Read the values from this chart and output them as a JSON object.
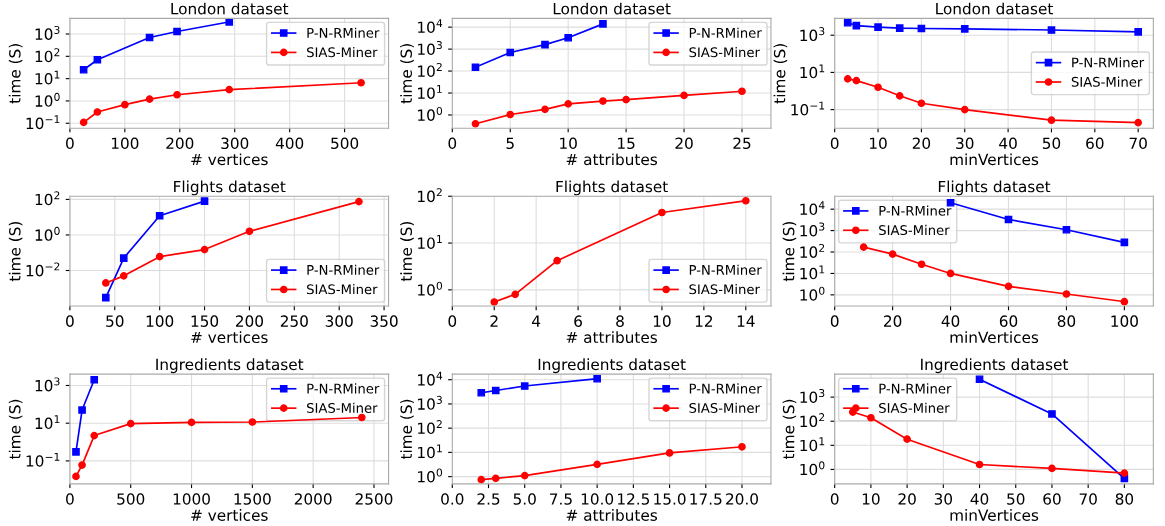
{
  "chart_data": [
    {
      "type": "line",
      "title": "London dataset",
      "xlabel": "# vertices",
      "ylabel": "time (S)",
      "log": true,
      "grid": true,
      "legend": "top right",
      "xlim": [
        0,
        580
      ],
      "xticks": [
        0,
        100,
        200,
        300,
        400,
        500
      ],
      "ylim": [
        0.06,
        5000
      ],
      "yticks": [
        {
          "value": 0.1,
          "label": "10$^{−1}$"
        },
        {
          "value": 1,
          "label": "10$^{0}$"
        },
        {
          "value": 10,
          "label": "10$^{1}$"
        },
        {
          "value": 100,
          "label": "10$^{2}$"
        },
        {
          "value": 1000,
          "label": "10$^{3}$"
        }
      ],
      "series": [
        {
          "name": "P-N-RMiner",
          "color": "#0000ff",
          "marker": "square",
          "x": [
            25,
            50,
            145,
            195,
            290
          ],
          "values": [
            25,
            70,
            700,
            1300,
            3500
          ]
        },
        {
          "name": "SIAS-Miner",
          "color": "#ff0000",
          "marker": "circle",
          "x": [
            25,
            50,
            100,
            145,
            195,
            290,
            530
          ],
          "values": [
            0.11,
            0.32,
            0.68,
            1.2,
            1.9,
            3.2,
            6.5
          ]
        }
      ]
    },
    {
      "type": "line",
      "title": "London dataset",
      "xlabel": "# attributes",
      "ylabel": "time (S)",
      "log": true,
      "grid": true,
      "legend": "top right",
      "xlim": [
        0,
        27.5
      ],
      "xticks": [
        0,
        5,
        10,
        15,
        20,
        25
      ],
      "ylim": [
        0.25,
        25000
      ],
      "yticks": [
        {
          "value": 1,
          "label": "10$^{0}$"
        },
        {
          "value": 10,
          "label": "10$^{1}$"
        },
        {
          "value": 100,
          "label": "10$^{2}$"
        },
        {
          "value": 1000,
          "label": "10$^{3}$"
        },
        {
          "value": 10000,
          "label": "10$^{4}$"
        }
      ],
      "series": [
        {
          "name": "P-N-RMiner",
          "color": "#0000ff",
          "marker": "square",
          "x": [
            2,
            5,
            8,
            10,
            13
          ],
          "values": [
            150,
            700,
            1600,
            3300,
            14000
          ]
        },
        {
          "name": "SIAS-Miner",
          "color": "#ff0000",
          "marker": "circle",
          "x": [
            2,
            5,
            8,
            10,
            13,
            15,
            20,
            25
          ],
          "values": [
            0.4,
            1.05,
            1.8,
            3.2,
            4.3,
            5,
            7.8,
            12
          ]
        }
      ]
    },
    {
      "type": "line",
      "title": "London dataset",
      "xlabel": "minVertices",
      "ylabel": "time (S)",
      "log": true,
      "grid": true,
      "legend": "right",
      "xlim": [
        0,
        73.5
      ],
      "xticks": [
        0,
        10,
        20,
        30,
        40,
        50,
        60,
        70
      ],
      "ylim": [
        0.01,
        8000
      ],
      "yticks": [
        {
          "value": 0.1,
          "label": "10$^{−1}$"
        },
        {
          "value": 10,
          "label": "10$^{1}$"
        },
        {
          "value": 1000,
          "label": "10$^{3}$"
        }
      ],
      "series": [
        {
          "name": "P-N-RMiner",
          "color": "#0000ff",
          "marker": "square",
          "x": [
            3,
            5,
            10,
            15,
            20,
            30,
            50,
            70
          ],
          "values": [
            4700,
            3300,
            2700,
            2400,
            2300,
            2200,
            1900,
            1500
          ]
        },
        {
          "name": "SIAS-Miner",
          "color": "#ff0000",
          "marker": "circle",
          "x": [
            3,
            5,
            10,
            15,
            20,
            30,
            50,
            70
          ],
          "values": [
            4.5,
            3.6,
            1.6,
            0.55,
            0.22,
            0.1,
            0.027,
            0.02
          ]
        }
      ]
    },
    {
      "type": "line",
      "title": "Flights dataset",
      "xlabel": "# vertices",
      "ylabel": "time (S)",
      "log": true,
      "grid": true,
      "legend": "bottom right",
      "xlim": [
        0,
        355
      ],
      "xticks": [
        0,
        50,
        100,
        150,
        200,
        250,
        300,
        350
      ],
      "ylim": [
        0.0001,
        150
      ],
      "yticks": [
        {
          "value": 0.01,
          "label": "10$^{−2}$"
        },
        {
          "value": 1,
          "label": "10$^{0}$"
        },
        {
          "value": 100,
          "label": "10$^{2}$"
        }
      ],
      "series": [
        {
          "name": "P-N-RMiner",
          "color": "#0000ff",
          "marker": "square",
          "x": [
            40,
            60,
            100,
            150
          ],
          "values": [
            0.0003,
            0.05,
            12,
            80
          ]
        },
        {
          "name": "SIAS-Miner",
          "color": "#ff0000",
          "marker": "circle",
          "x": [
            40,
            60,
            100,
            150,
            200,
            322
          ],
          "values": [
            0.002,
            0.005,
            0.06,
            0.15,
            1.6,
            75
          ]
        }
      ]
    },
    {
      "type": "line",
      "title": "Flights dataset",
      "xlabel": "# attributes",
      "ylabel": "time (S)",
      "log": true,
      "grid": true,
      "legend": "bottom right",
      "xlim": [
        0,
        15.2
      ],
      "xticks": [
        0,
        2,
        4,
        6,
        8,
        10,
        12,
        14
      ],
      "ylim": [
        0.45,
        100
      ],
      "yticks": [
        {
          "value": 1,
          "label": "10$^{0}$"
        },
        {
          "value": 10,
          "label": "10$^{1}$"
        },
        {
          "value": 100,
          "label": "10$^{2}$"
        }
      ],
      "series": [
        {
          "name": "P-N-RMiner",
          "color": "#0000ff",
          "marker": "square"
        },
        {
          "name": "SIAS-Miner",
          "color": "#ff0000",
          "marker": "circle",
          "x": [
            2,
            3,
            5,
            10,
            14
          ],
          "values": [
            0.55,
            0.8,
            4.2,
            45,
            80
          ]
        }
      ]
    },
    {
      "type": "line",
      "title": "Flights dataset",
      "xlabel": "minVertices",
      "ylabel": "time (S)",
      "log": true,
      "grid": true,
      "legend": "top left",
      "xlim": [
        0,
        110
      ],
      "xticks": [
        0,
        20,
        40,
        60,
        80,
        100
      ],
      "ylim": [
        0.3,
        40000
      ],
      "yticks": [
        {
          "value": 1,
          "label": "10$^{0}$"
        },
        {
          "value": 10,
          "label": "10$^{1}$"
        },
        {
          "value": 100,
          "label": "10$^{2}$"
        },
        {
          "value": 1000,
          "label": "10$^{3}$"
        },
        {
          "value": 10000,
          "label": "10$^{4}$"
        }
      ],
      "series": [
        {
          "name": "P-N-RMiner",
          "color": "#0000ff",
          "marker": "square",
          "x": [
            40,
            60,
            80,
            100
          ],
          "values": [
            20000,
            3300,
            1100,
            280
          ]
        },
        {
          "name": "SIAS-Miner",
          "color": "#ff0000",
          "marker": "circle",
          "x": [
            10,
            20,
            30,
            40,
            60,
            80,
            100
          ],
          "values": [
            170,
            80,
            27,
            10,
            2.5,
            1.1,
            0.48
          ]
        }
      ]
    },
    {
      "type": "line",
      "title": "Ingredients dataset",
      "xlabel": "# vertices",
      "ylabel": "time (S)",
      "log": true,
      "grid": true,
      "legend": "top right",
      "xlim": [
        0,
        2620
      ],
      "xticks": [
        0,
        500,
        1000,
        1500,
        2000,
        2500
      ],
      "ylim": [
        0.006,
        4000
      ],
      "yticks": [
        {
          "value": 0.1,
          "label": "10$^{−1}$"
        },
        {
          "value": 10,
          "label": "10$^{1}$"
        },
        {
          "value": 1000,
          "label": "10$^{3}$"
        }
      ],
      "series": [
        {
          "name": "P-N-RMiner",
          "color": "#0000ff",
          "marker": "square",
          "x": [
            50,
            100,
            200
          ],
          "values": [
            0.3,
            50,
            2000
          ]
        },
        {
          "name": "SIAS-Miner",
          "color": "#ff0000",
          "marker": "circle",
          "x": [
            50,
            100,
            200,
            500,
            1000,
            1500,
            2400
          ],
          "values": [
            0.015,
            0.06,
            2.2,
            9.5,
            11,
            11.5,
            20
          ]
        }
      ]
    },
    {
      "type": "line",
      "title": "Ingredients dataset",
      "xlabel": "# attributes",
      "ylabel": "time (S)",
      "log": true,
      "grid": true,
      "legend": "top right",
      "xlim": [
        0,
        22
      ],
      "xticks": [
        {
          "value": 0,
          "label": "0.0"
        },
        {
          "value": 2.5,
          "label": "2.5"
        },
        {
          "value": 5,
          "label": "5.0"
        },
        {
          "value": 7.5,
          "label": "7.5"
        },
        {
          "value": 10,
          "label": "10.0"
        },
        {
          "value": 12.5,
          "label": "12.5"
        },
        {
          "value": 15,
          "label": "15.0"
        },
        {
          "value": 17.5,
          "label": "17.5"
        },
        {
          "value": 20,
          "label": "20.0"
        }
      ],
      "ylim": [
        0.5,
        17000
      ],
      "yticks": [
        {
          "value": 1,
          "label": "10$^{0}$"
        },
        {
          "value": 10,
          "label": "10$^{1}$"
        },
        {
          "value": 100,
          "label": "10$^{2}$"
        },
        {
          "value": 1000,
          "label": "10$^{3}$"
        },
        {
          "value": 10000,
          "label": "10$^{4}$"
        }
      ],
      "series": [
        {
          "name": "P-N-RMiner",
          "color": "#0000ff",
          "marker": "square",
          "x": [
            2,
            3,
            5,
            10
          ],
          "values": [
            2900,
            3600,
            5500,
            11000
          ]
        },
        {
          "name": "SIAS-Miner",
          "color": "#ff0000",
          "marker": "circle",
          "x": [
            2,
            3,
            5,
            10,
            15,
            20
          ],
          "values": [
            0.75,
            0.85,
            1.1,
            3.2,
            9.5,
            17
          ]
        }
      ]
    },
    {
      "type": "line",
      "title": "Ingredients dataset",
      "xlabel": "minVertices",
      "ylabel": "time (S)",
      "log": true,
      "grid": true,
      "legend": "top left",
      "xlim": [
        0,
        88
      ],
      "xticks": [
        0,
        10,
        20,
        30,
        40,
        50,
        60,
        70,
        80
      ],
      "ylim": [
        0.25,
        9000
      ],
      "yticks": [
        {
          "value": 1,
          "label": "10$^{0}$"
        },
        {
          "value": 10,
          "label": "10$^{1}$"
        },
        {
          "value": 100,
          "label": "10$^{2}$"
        },
        {
          "value": 1000,
          "label": "10$^{3}$"
        }
      ],
      "series": [
        {
          "name": "P-N-RMiner",
          "color": "#0000ff",
          "marker": "square",
          "x": [
            40,
            60,
            80
          ],
          "values": [
            5500,
            200,
            0.42
          ]
        },
        {
          "name": "SIAS-Miner",
          "color": "#ff0000",
          "marker": "circle",
          "x": [
            5,
            10,
            20,
            40,
            60,
            80
          ],
          "values": [
            240,
            140,
            18,
            1.6,
            1.1,
            0.7
          ]
        }
      ]
    }
  ]
}
